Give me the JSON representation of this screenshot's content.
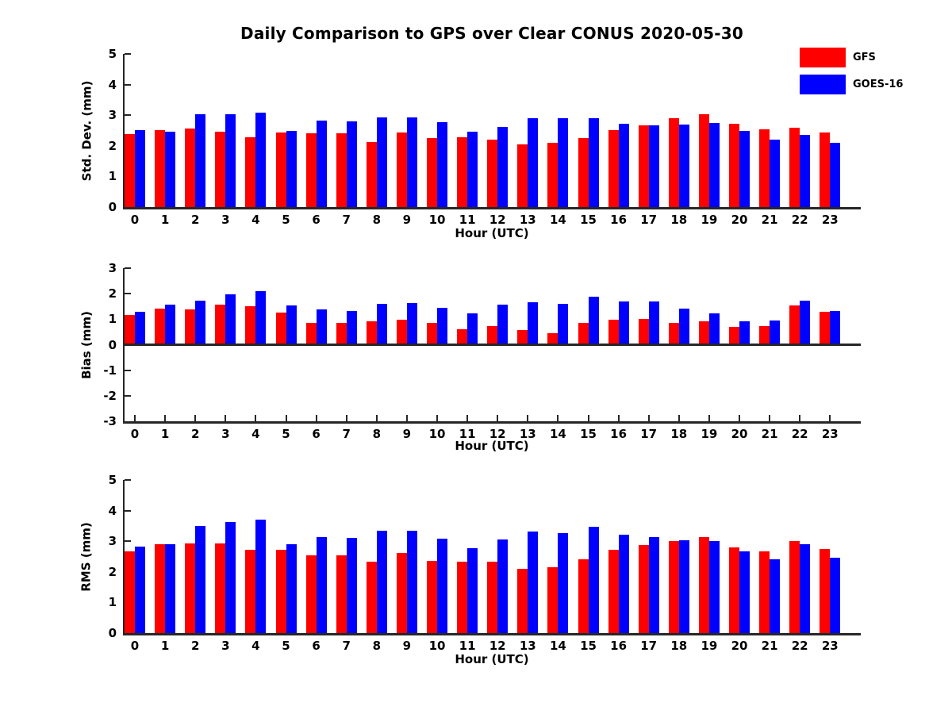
{
  "title": "Daily Comparison to GPS over Clear CONUS 2020-05-30",
  "colors": {
    "gfs": "#ff0000",
    "goes16": "#0000ff",
    "axis": "#262626",
    "text": "#000000",
    "background": "#ffffff"
  },
  "legend": {
    "position": "top-right",
    "items": [
      {
        "label": "GFS",
        "color": "#ff0000"
      },
      {
        "label": "GOES-16",
        "color": "#0000ff"
      }
    ]
  },
  "chart_data": [
    {
      "type": "bar",
      "title": "Daily Comparison to GPS over Clear CONUS 2020-05-30",
      "ylabel": "Std. Dev. (mm)",
      "xlabel": "Hour (UTC)",
      "ylim": [
        0,
        5
      ],
      "yticks": [
        0,
        1,
        2,
        3,
        4,
        5
      ],
      "grid": false,
      "categories": [
        0,
        1,
        2,
        3,
        4,
        5,
        6,
        7,
        8,
        9,
        10,
        11,
        12,
        13,
        14,
        15,
        16,
        17,
        18,
        19,
        20,
        21,
        22,
        23
      ],
      "series": [
        {
          "name": "GFS",
          "color": "#ff0000",
          "values": [
            2.38,
            2.52,
            2.57,
            2.47,
            2.27,
            2.44,
            2.4,
            2.4,
            2.13,
            2.44,
            2.25,
            2.27,
            2.21,
            2.05,
            2.11,
            2.25,
            2.51,
            2.68,
            2.9,
            3.02,
            2.71,
            2.53,
            2.59,
            2.43
          ]
        },
        {
          "name": "GOES-16",
          "color": "#0000ff",
          "values": [
            2.52,
            2.46,
            3.03,
            3.03,
            3.08,
            2.49,
            2.83,
            2.81,
            2.94,
            2.92,
            2.76,
            2.47,
            2.62,
            2.9,
            2.89,
            2.9,
            2.72,
            2.66,
            2.69,
            2.74,
            2.48,
            2.21,
            2.35,
            2.09
          ]
        }
      ]
    },
    {
      "type": "bar",
      "title": "",
      "ylabel": "Bias (mm)",
      "xlabel": "Hour (UTC)",
      "ylim": [
        -3,
        3
      ],
      "yticks": [
        -3,
        -2,
        -1,
        0,
        1,
        2,
        3
      ],
      "grid": false,
      "categories": [
        0,
        1,
        2,
        3,
        4,
        5,
        6,
        7,
        8,
        9,
        10,
        11,
        12,
        13,
        14,
        15,
        16,
        17,
        18,
        19,
        20,
        21,
        22,
        23
      ],
      "series": [
        {
          "name": "GFS",
          "color": "#ff0000",
          "values": [
            1.18,
            1.42,
            1.38,
            1.56,
            1.52,
            1.25,
            0.85,
            0.85,
            0.93,
            0.98,
            0.85,
            0.62,
            0.73,
            0.58,
            0.46,
            0.86,
            0.99,
            1.01,
            0.86,
            0.92,
            0.71,
            0.74,
            1.55,
            1.3
          ]
        },
        {
          "name": "GOES-16",
          "color": "#0000ff",
          "values": [
            1.3,
            1.58,
            1.72,
            1.98,
            2.1,
            1.55,
            1.38,
            1.33,
            1.6,
            1.63,
            1.45,
            1.23,
            1.57,
            1.66,
            1.6,
            1.87,
            1.71,
            1.7,
            1.42,
            1.24,
            0.91,
            0.96,
            1.74,
            1.33
          ]
        }
      ]
    },
    {
      "type": "bar",
      "title": "",
      "ylabel": "RMS (mm)",
      "xlabel": "Hour (UTC)",
      "ylim": [
        0,
        5
      ],
      "yticks": [
        0,
        1,
        2,
        3,
        4,
        5
      ],
      "grid": false,
      "categories": [
        0,
        1,
        2,
        3,
        4,
        5,
        6,
        7,
        8,
        9,
        10,
        11,
        12,
        13,
        14,
        15,
        16,
        17,
        18,
        19,
        20,
        21,
        22,
        23
      ],
      "series": [
        {
          "name": "GFS",
          "color": "#ff0000",
          "values": [
            2.66,
            2.89,
            2.92,
            2.94,
            2.72,
            2.73,
            2.53,
            2.53,
            2.33,
            2.62,
            2.36,
            2.33,
            2.34,
            2.11,
            2.15,
            2.41,
            2.71,
            2.87,
            3.0,
            3.13,
            2.8,
            2.66,
            3.01,
            2.75
          ]
        },
        {
          "name": "GOES-16",
          "color": "#0000ff",
          "values": [
            2.83,
            2.91,
            3.5,
            3.62,
            3.71,
            2.9,
            3.13,
            3.1,
            3.34,
            3.34,
            3.09,
            2.76,
            3.06,
            3.32,
            3.27,
            3.46,
            3.2,
            3.13,
            3.03,
            3.01,
            2.66,
            2.42,
            2.91,
            2.47
          ]
        }
      ]
    }
  ]
}
